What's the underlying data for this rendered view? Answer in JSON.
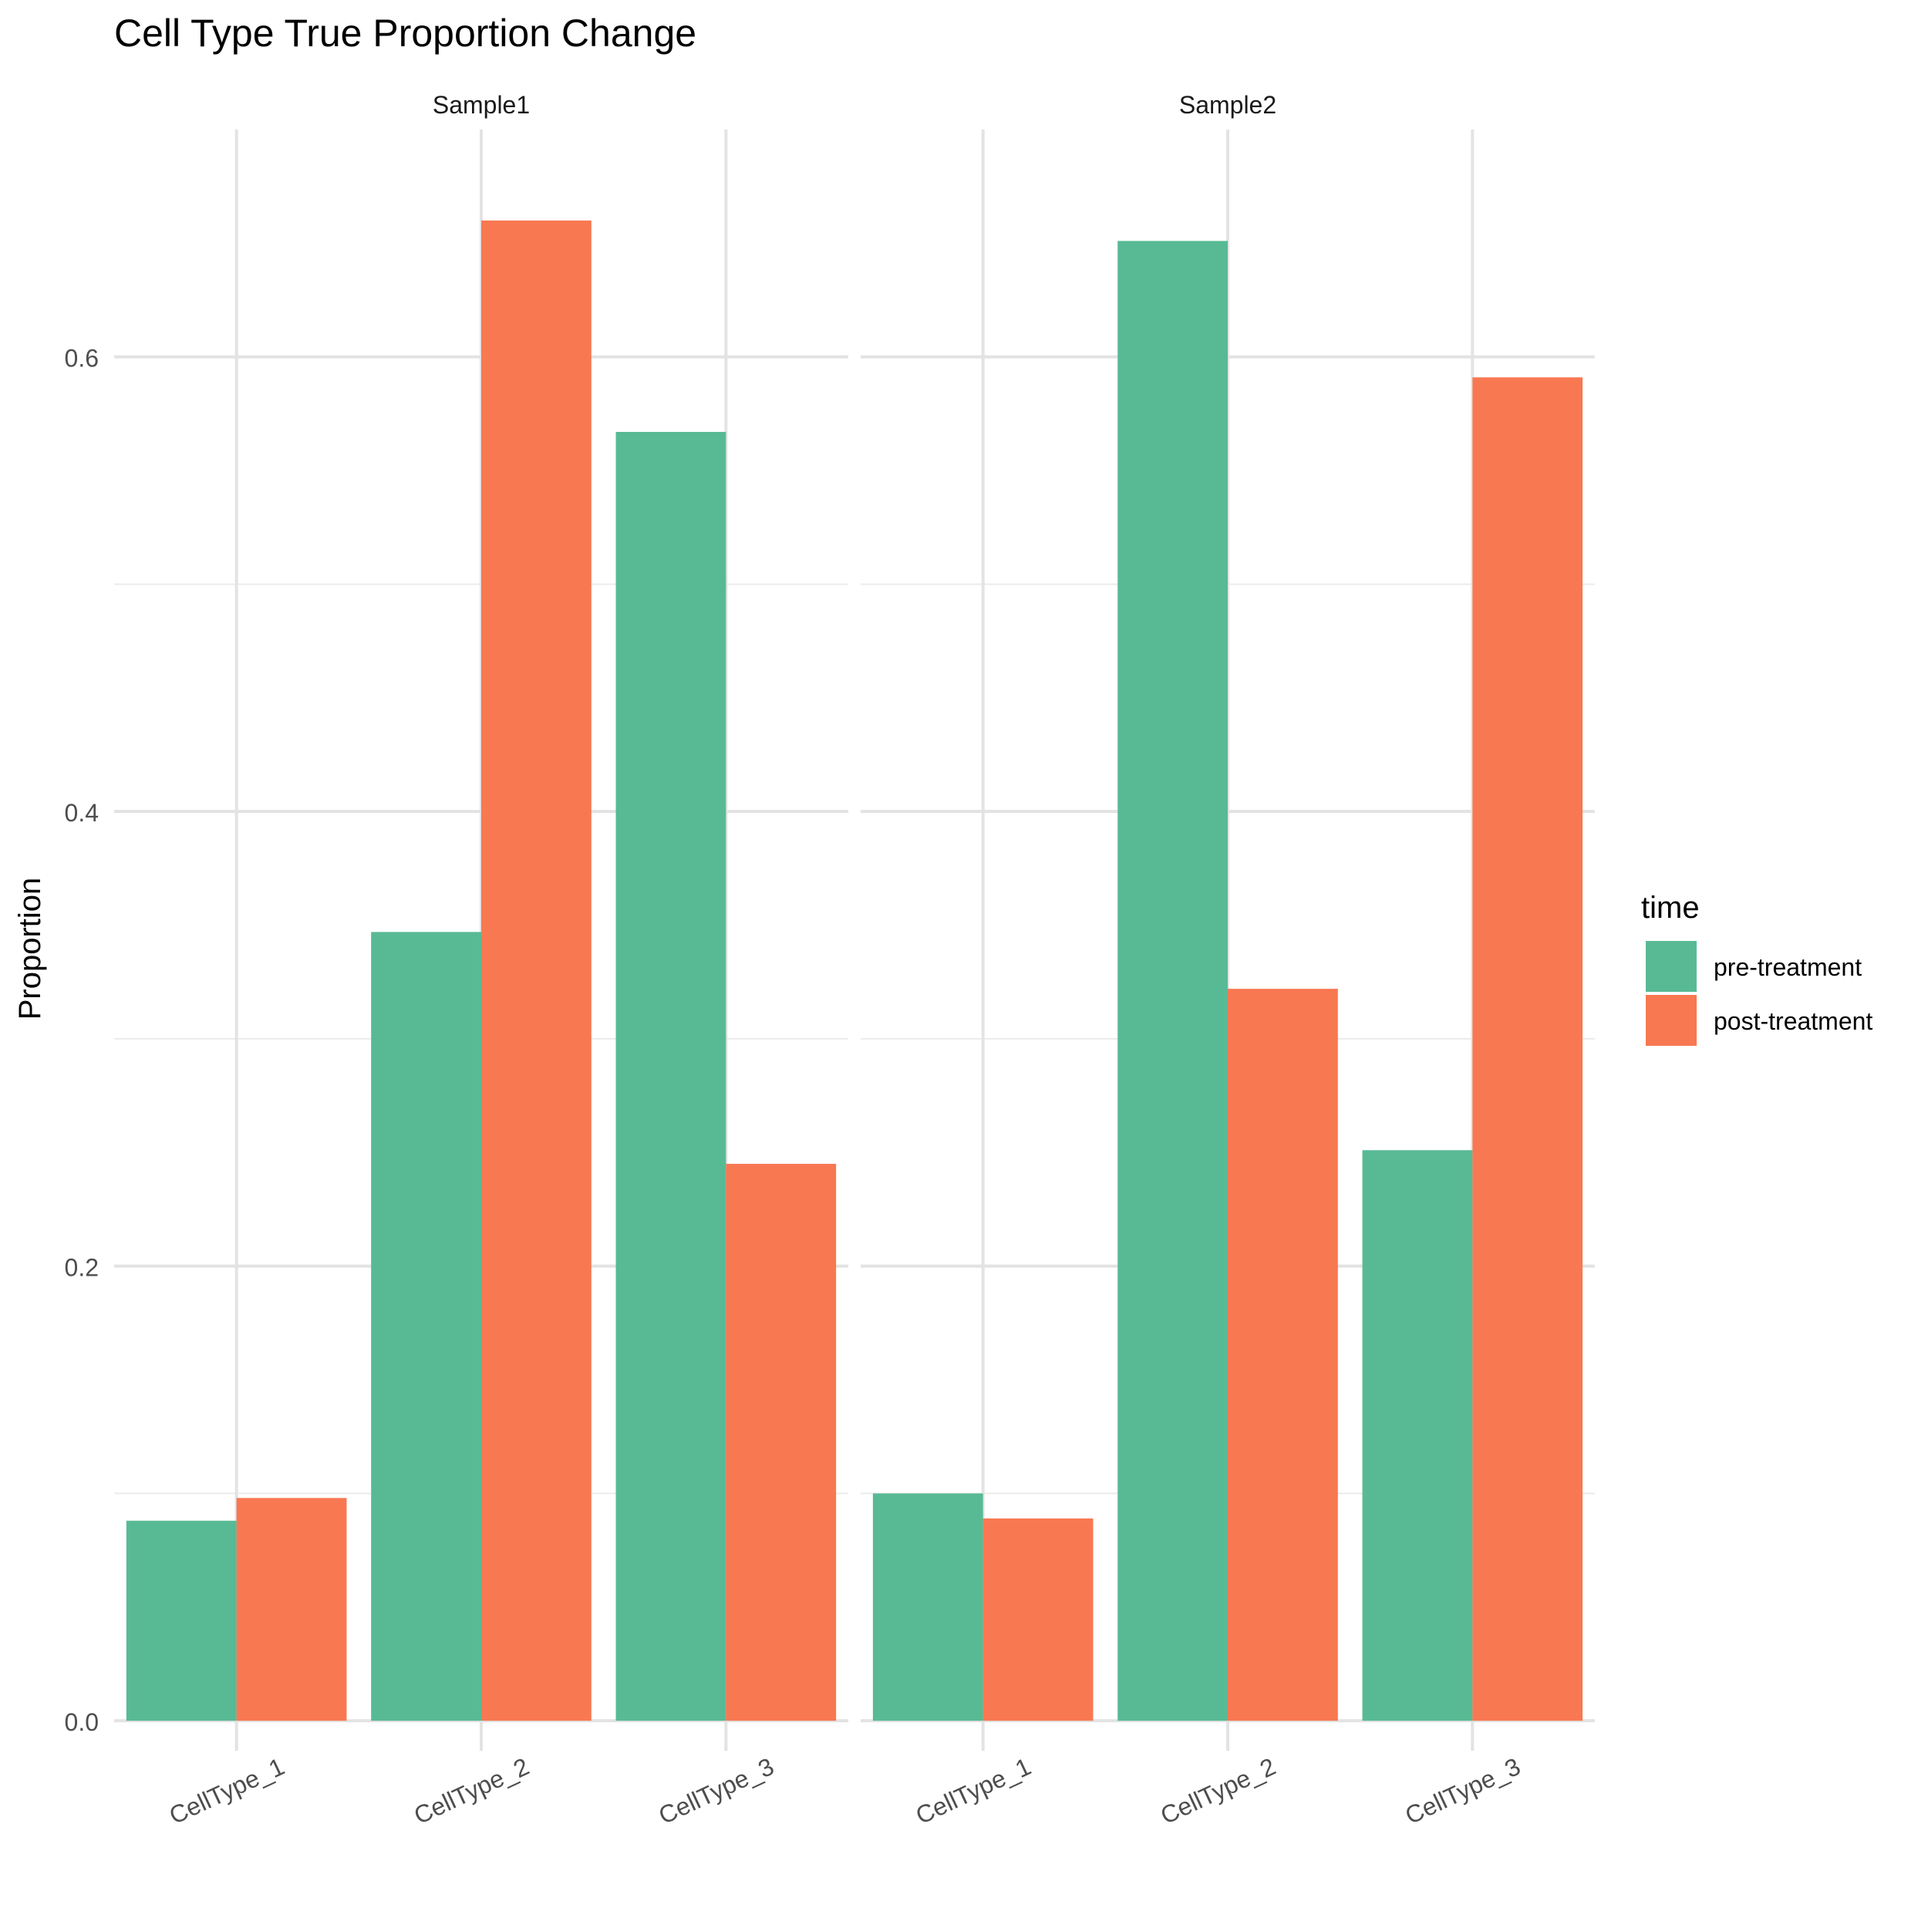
{
  "chart_data": {
    "type": "bar",
    "title": "Cell Type True Proportion Change",
    "xlabel": "",
    "ylabel": "Proportion",
    "ylim": [
      -0.0132,
      0.7
    ],
    "y_ticks": [
      0.0,
      0.2,
      0.4,
      0.6
    ],
    "y_tick_labels": [
      "0.0",
      "0.2",
      "0.4",
      "0.6"
    ],
    "y_minor_ticks": [
      0.1,
      0.3,
      0.5
    ],
    "grid": true,
    "categories": [
      "CellType_1",
      "CellType_2",
      "CellType_3"
    ],
    "legend": {
      "title": "time",
      "position": "right"
    },
    "series": [
      {
        "name": "pre-treatment",
        "color": "#58BA94"
      },
      {
        "name": "post-treatment",
        "color": "#F87852"
      }
    ],
    "facets": [
      {
        "label": "Sample1",
        "values": {
          "pre-treatment": [
            0.088,
            0.347,
            0.567
          ],
          "post-treatment": [
            0.098,
            0.66,
            0.245
          ]
        }
      },
      {
        "label": "Sample2",
        "values": {
          "pre-treatment": [
            0.1,
            0.651,
            0.251
          ],
          "post-treatment": [
            0.089,
            0.322,
            0.591
          ]
        }
      }
    ]
  }
}
